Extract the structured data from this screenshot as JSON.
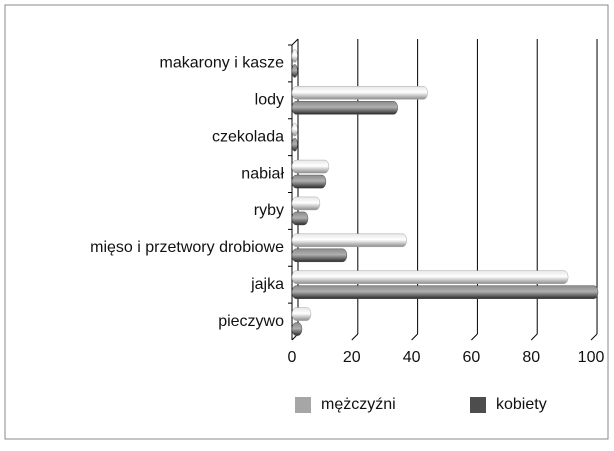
{
  "chart_data": {
    "type": "bar",
    "orientation": "horizontal",
    "categories": [
      "makarony i kasze",
      "lody",
      "czekolada",
      "nabiał",
      "ryby",
      "mięso i przetwory drobiowe",
      "jajka",
      "pieczywo"
    ],
    "series": [
      {
        "name": "mężczyźni",
        "color": "#a6a6a6",
        "values": [
          0.5,
          44,
          0.5,
          11,
          8,
          37,
          91,
          5
        ]
      },
      {
        "name": "kobiety",
        "color": "#4d4d4d",
        "values": [
          0.5,
          34,
          0.5,
          10,
          4,
          17,
          101,
          2
        ]
      }
    ],
    "xlim": [
      0,
      103
    ],
    "xticks": [
      0,
      20,
      40,
      60,
      80,
      100
    ],
    "grid": true,
    "legend": "bottom"
  }
}
